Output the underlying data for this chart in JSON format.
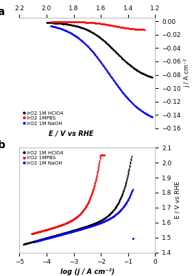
{
  "panel_a": {
    "title": "a",
    "xlabel": "E / V vs RHE",
    "ylabel": "j / A cm⁻²",
    "x_lim": [
      2.2,
      1.2
    ],
    "y_lim": [
      -0.16,
      0.005
    ],
    "y_ticks": [
      0.0,
      -0.02,
      -0.04,
      -0.06,
      -0.08,
      -0.1,
      -0.12,
      -0.14,
      -0.16
    ],
    "x_ticks": [
      2.2,
      2.0,
      1.8,
      1.6,
      1.4,
      1.2
    ],
    "legend": [
      "IrO2 1M HClO4",
      "IrO2 1MPBS",
      "IrO2 1M NaOH"
    ],
    "colors": [
      "black",
      "red",
      "blue"
    ]
  },
  "panel_b": {
    "title": "b",
    "xlabel": "log (j / A cm⁻²)",
    "ylabel": "E / V vs RHE",
    "x_lim": [
      -5,
      0
    ],
    "y_lim": [
      1.4,
      2.1
    ],
    "y_ticks": [
      1.4,
      1.5,
      1.6,
      1.7,
      1.8,
      1.9,
      2.0,
      2.1
    ],
    "x_ticks": [
      -5,
      -4,
      -3,
      -2,
      -1,
      0
    ],
    "legend": [
      "IrO2 1M HClO4",
      "IrO2 1MPBS",
      "IrO2 1M NaOH"
    ],
    "colors": [
      "black",
      "red",
      "blue"
    ]
  }
}
